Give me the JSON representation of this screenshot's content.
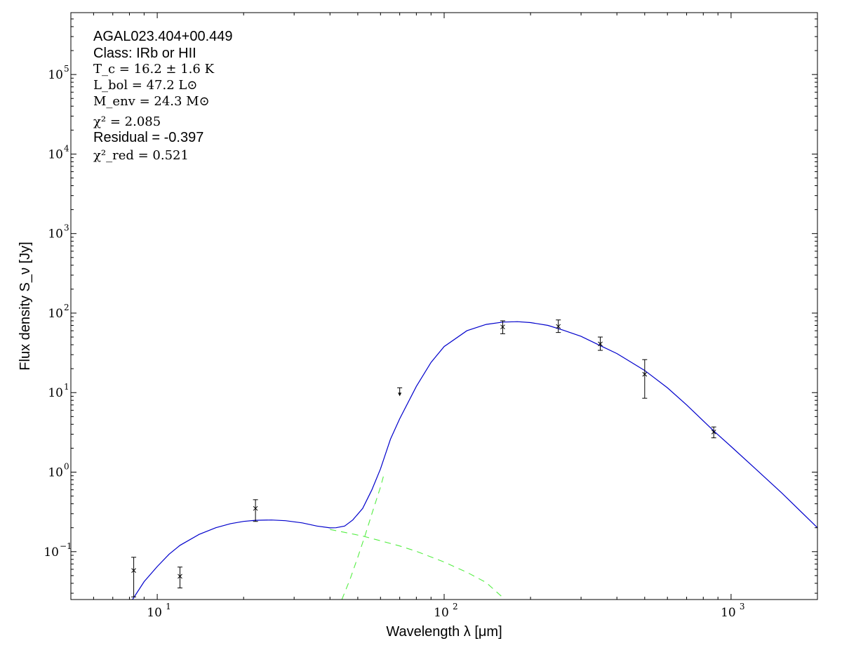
{
  "chart_data": {
    "type": "scatter",
    "x_scale": "log",
    "y_scale": "log",
    "xlim": [
      5,
      2000
    ],
    "ylim": [
      0.025,
      600000
    ],
    "xlabel": "Wavelength λ [μm]",
    "ylabel": "Flux density S_ν [Jy]",
    "x_ticks": [
      {
        "value": 10,
        "base": "10",
        "exp": "1"
      },
      {
        "value": 100,
        "base": "10",
        "exp": "2"
      },
      {
        "value": 1000,
        "base": "10",
        "exp": "3"
      }
    ],
    "y_ticks": [
      {
        "value": 0.1,
        "base": "10",
        "exp": "−1"
      },
      {
        "value": 1,
        "base": "10",
        "exp": "0"
      },
      {
        "value": 10,
        "base": "10",
        "exp": "1"
      },
      {
        "value": 100,
        "base": "10",
        "exp": "2"
      },
      {
        "value": 1000,
        "base": "10",
        "exp": "3"
      },
      {
        "value": 10000,
        "base": "10",
        "exp": "4"
      },
      {
        "value": 100000,
        "base": "10",
        "exp": "5"
      }
    ],
    "grid": false,
    "annotations": {
      "source": "AGAL023.404+00.449",
      "class_text": "Class: IRb or HII",
      "tc_text": "T_c = 16.2 ± 1.6 K",
      "lbol_text": "L_bol = 47.2 L⊙",
      "menv_text": "M_env = 24.3 M⊙",
      "chi2_text": "χ² = 2.085",
      "residual_text": "Residual = -0.397",
      "chi2red_text": "χ²_red = 0.521"
    },
    "data_points": [
      {
        "x": 8.28,
        "y": 0.058,
        "yerr_low": 0.031,
        "yerr_high": 0.027
      },
      {
        "x": 12,
        "y": 0.049,
        "yerr_low": 0.014,
        "yerr_high": 0.015
      },
      {
        "x": 22,
        "y": 0.35,
        "yerr_low": 0.11,
        "yerr_high": 0.1
      },
      {
        "x": 160,
        "y": 67,
        "yerr_low": 12,
        "yerr_high": 13
      },
      {
        "x": 250,
        "y": 68,
        "yerr_low": 11,
        "yerr_high": 14
      },
      {
        "x": 350,
        "y": 41,
        "yerr_low": 7,
        "yerr_high": 9
      },
      {
        "x": 500,
        "y": 17,
        "yerr_low": 8.5,
        "yerr_high": 9
      },
      {
        "x": 870,
        "y": 3.2,
        "yerr_low": 0.5,
        "yerr_high": 0.5
      }
    ],
    "upper_limits": [
      {
        "x": 70,
        "y": 11.5
      }
    ],
    "series": [
      {
        "role": "total-fit",
        "color": "#0000cc",
        "style": "solid",
        "x": [
          8.2,
          9,
          10,
          11,
          12,
          14,
          16,
          18,
          20,
          22,
          25,
          28,
          32,
          36,
          40,
          42,
          45,
          48,
          52,
          56,
          60,
          65,
          70,
          80,
          90,
          100,
          120,
          140,
          160,
          180,
          200,
          230,
          260,
          300,
          350,
          400,
          500,
          600,
          700,
          870,
          1000,
          1200,
          1500,
          2000
        ],
        "y": [
          0.025,
          0.042,
          0.065,
          0.093,
          0.12,
          0.165,
          0.2,
          0.225,
          0.24,
          0.248,
          0.25,
          0.245,
          0.23,
          0.21,
          0.199,
          0.2,
          0.21,
          0.25,
          0.35,
          0.6,
          1.1,
          2.6,
          4.7,
          12,
          24,
          38,
          60,
          72,
          77,
          78,
          76,
          70,
          61,
          51,
          39,
          31,
          19,
          11.5,
          7,
          3.3,
          2.1,
          1.15,
          0.55,
          0.2
        ]
      },
      {
        "role": "warm-component",
        "color": "#55ee44",
        "style": "dashed",
        "x": [
          40,
          45,
          52,
          60,
          70,
          80,
          100,
          120,
          140,
          163
        ],
        "y": [
          0.19,
          0.175,
          0.157,
          0.137,
          0.118,
          0.101,
          0.074,
          0.055,
          0.041,
          0.025
        ]
      },
      {
        "role": "cold-component",
        "color": "#55ee44",
        "style": "dashed",
        "x": [
          44,
          47,
          50,
          53,
          56,
          60,
          62
        ],
        "y": [
          0.025,
          0.045,
          0.085,
          0.16,
          0.3,
          0.65,
          1.0
        ]
      }
    ]
  }
}
